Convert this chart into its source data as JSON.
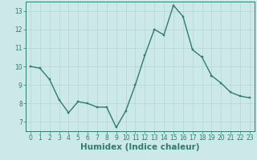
{
  "x": [
    0,
    1,
    2,
    3,
    4,
    5,
    6,
    7,
    8,
    9,
    10,
    11,
    12,
    13,
    14,
    15,
    16,
    17,
    18,
    19,
    20,
    21,
    22,
    23
  ],
  "y": [
    10.0,
    9.9,
    9.3,
    8.2,
    7.5,
    8.1,
    8.0,
    7.8,
    7.8,
    6.7,
    7.6,
    9.0,
    10.6,
    12.0,
    11.7,
    13.3,
    12.7,
    10.9,
    10.5,
    9.5,
    9.1,
    8.6,
    8.4,
    8.3
  ],
  "line_color": "#2e7d6e",
  "marker_color": "#2e7d6e",
  "bg_color": "#cce8e8",
  "grid_color": "#b8d8d8",
  "xlabel": "Humidex (Indice chaleur)",
  "xlim": [
    -0.5,
    23.5
  ],
  "ylim": [
    6.5,
    13.5
  ],
  "yticks": [
    7,
    8,
    9,
    10,
    11,
    12,
    13
  ],
  "xticks": [
    0,
    1,
    2,
    3,
    4,
    5,
    6,
    7,
    8,
    9,
    10,
    11,
    12,
    13,
    14,
    15,
    16,
    17,
    18,
    19,
    20,
    21,
    22,
    23
  ],
  "tick_fontsize": 5.5,
  "xlabel_fontsize": 7.5,
  "line_width": 1.0,
  "marker_size": 2.0
}
